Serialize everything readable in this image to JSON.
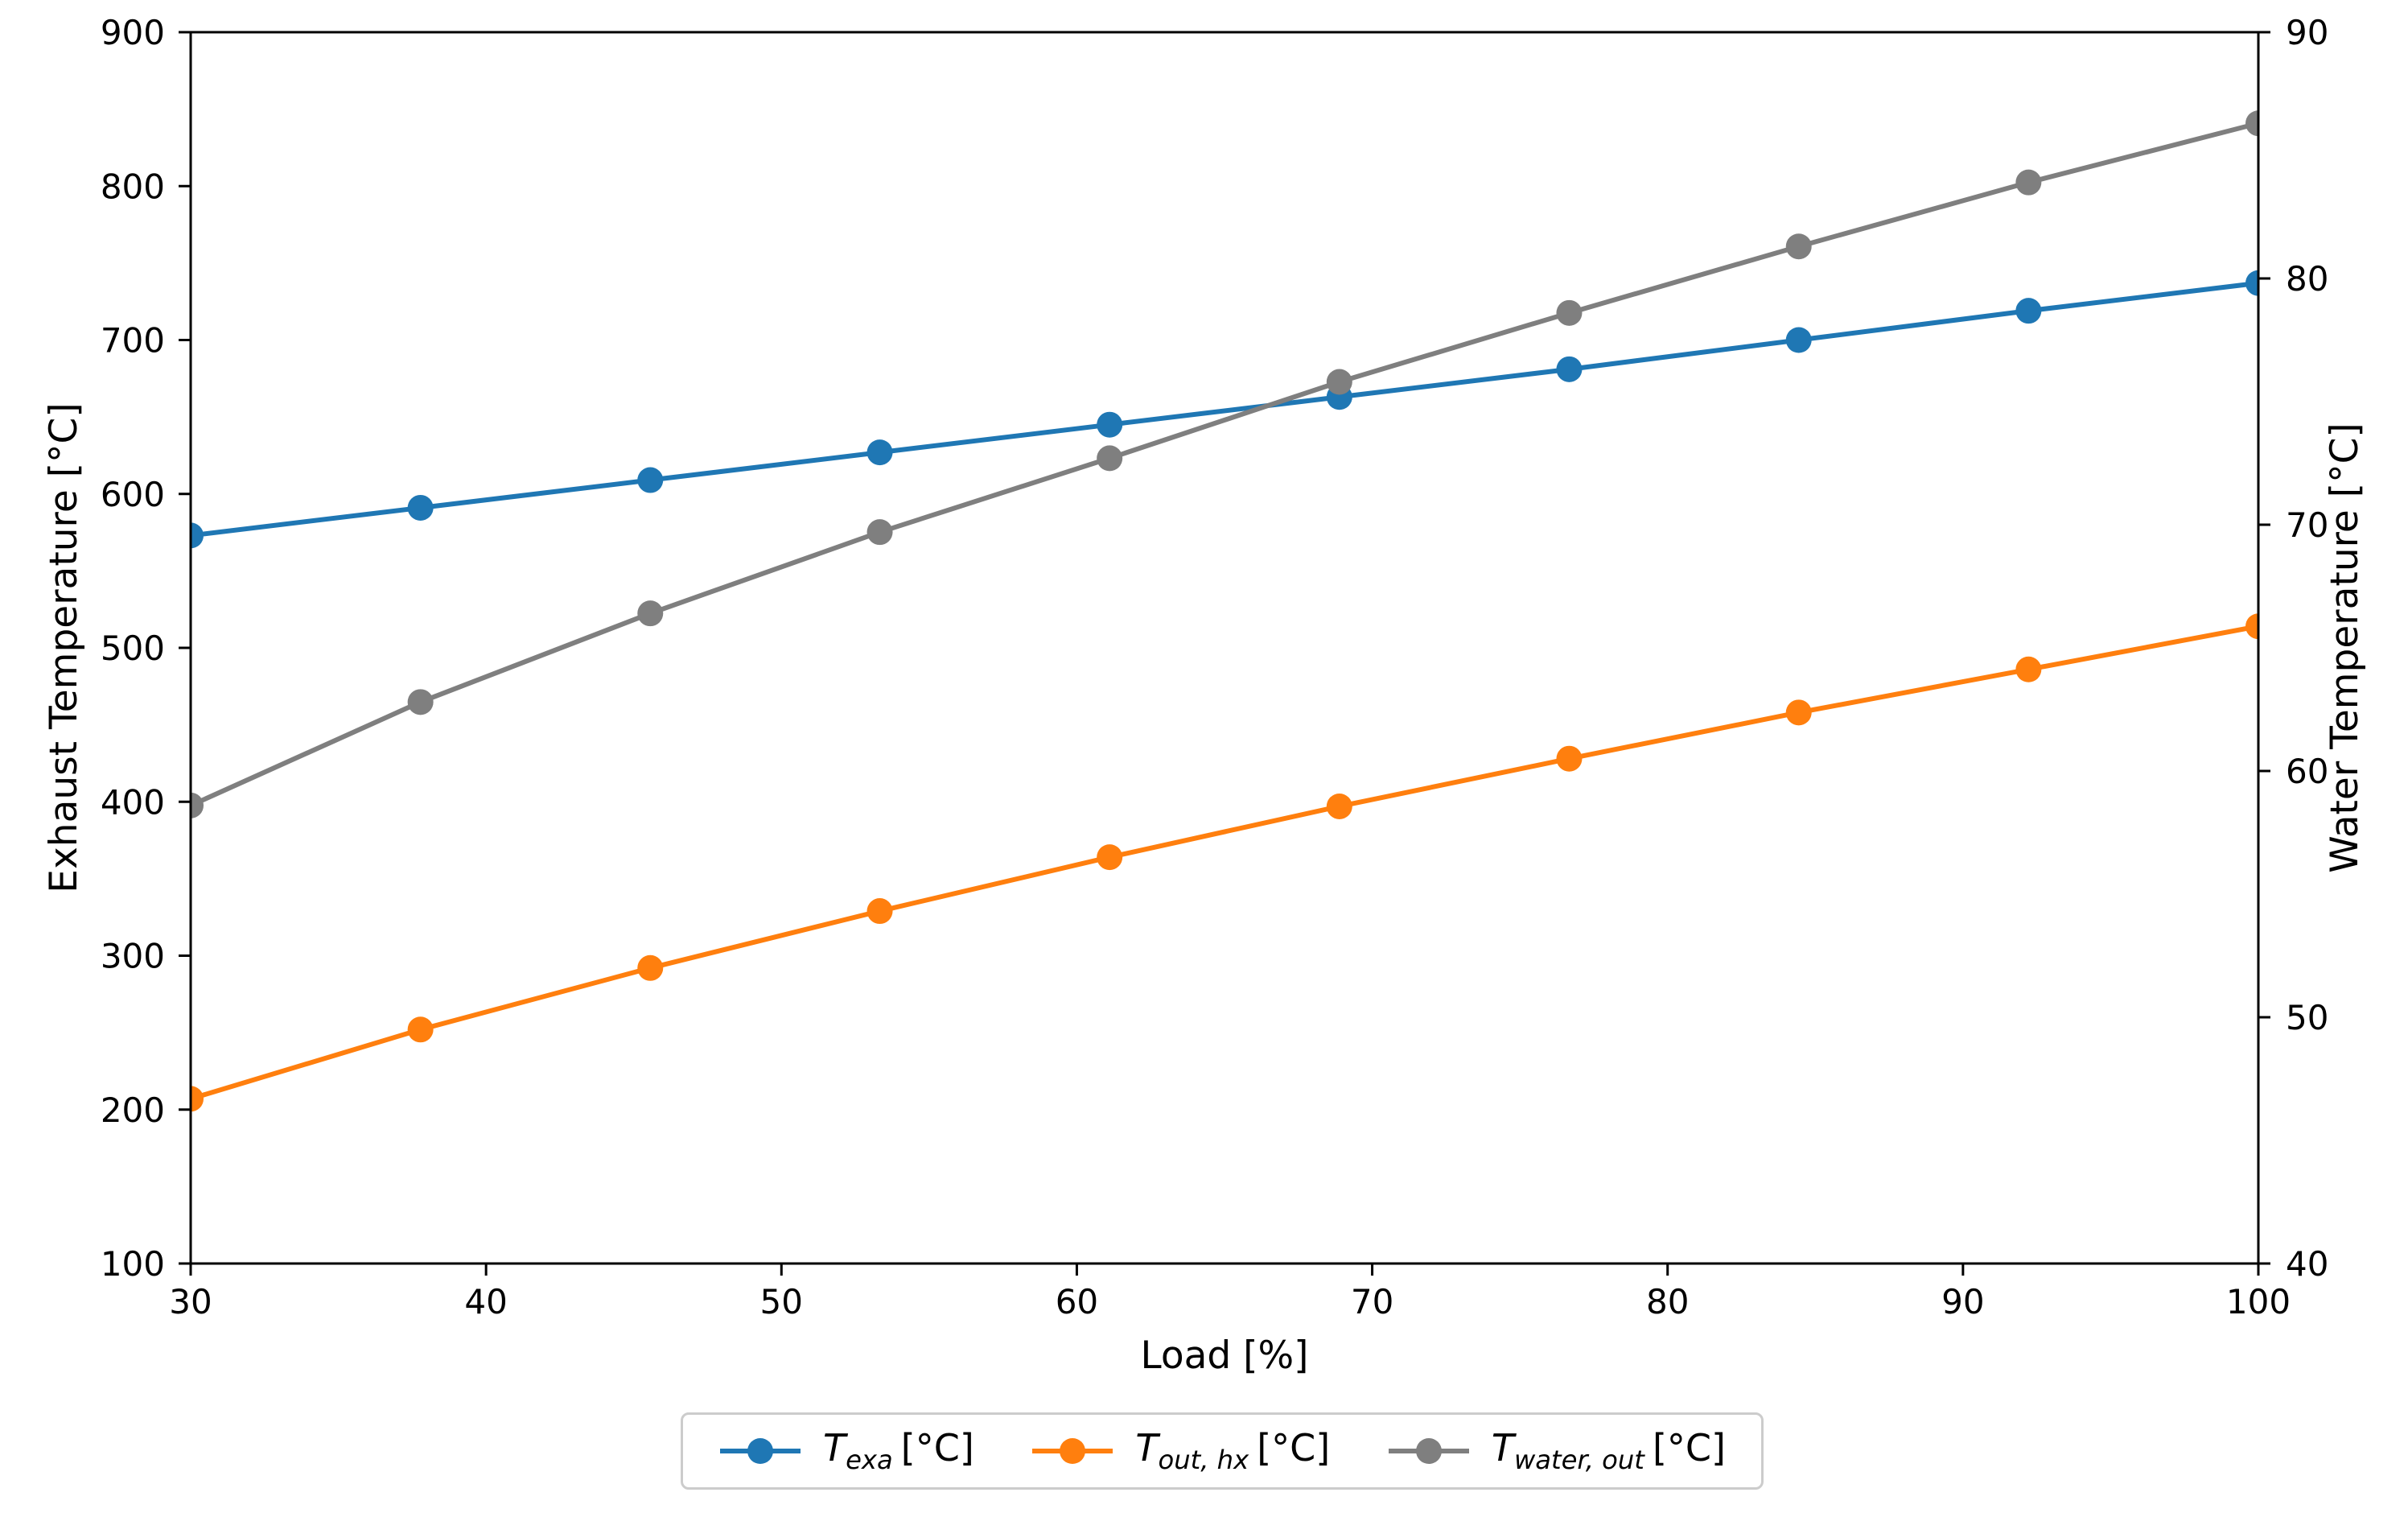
{
  "figure": {
    "background": "#ffffff",
    "text_color": "#000000",
    "spine_color": "#000000",
    "legend_border_color": "#cccccc"
  },
  "chart_data": {
    "type": "line",
    "title": "",
    "xlabel": "Load [%]",
    "x": [
      30,
      37.78,
      45.56,
      53.33,
      61.11,
      68.89,
      76.67,
      84.44,
      92.22,
      100
    ],
    "xlim": [
      30,
      100
    ],
    "xticks": [
      30,
      40,
      50,
      60,
      70,
      80,
      90,
      100
    ],
    "grid": false,
    "marker": "o",
    "legend_position": "lower center, below axes",
    "axes": {
      "left": {
        "label": "Exhaust Temperature [°C]",
        "lim": [
          100,
          900
        ],
        "ticks": [
          100,
          200,
          300,
          400,
          500,
          600,
          700,
          800,
          900
        ]
      },
      "right": {
        "label": "Water Temperature [°C]",
        "lim": [
          40,
          90
        ],
        "ticks": [
          40,
          50,
          60,
          70,
          80,
          90
        ]
      }
    },
    "series": [
      {
        "name": "T_exa",
        "axis": "left",
        "color": "#1f77b4",
        "label_base": "T",
        "label_sub": "exa",
        "label_unit": "[°C]",
        "values": [
          573,
          591,
          609,
          627,
          645,
          663,
          681,
          700,
          719,
          737
        ]
      },
      {
        "name": "T_out_hx",
        "axis": "left",
        "color": "#ff7f0e",
        "label_base": "T",
        "label_sub": "out, hx",
        "label_unit": "[°C]",
        "values": [
          207,
          252,
          292,
          329,
          364,
          397,
          428,
          458,
          486,
          514
        ]
      },
      {
        "name": "T_water_out",
        "axis": "right",
        "color": "#7f7f7f",
        "label_base": "T",
        "label_sub": "water, out",
        "label_unit": "[°C]",
        "values": [
          58.6,
          62.8,
          66.4,
          69.7,
          72.7,
          75.8,
          78.6,
          81.3,
          83.9,
          86.3
        ]
      }
    ]
  }
}
